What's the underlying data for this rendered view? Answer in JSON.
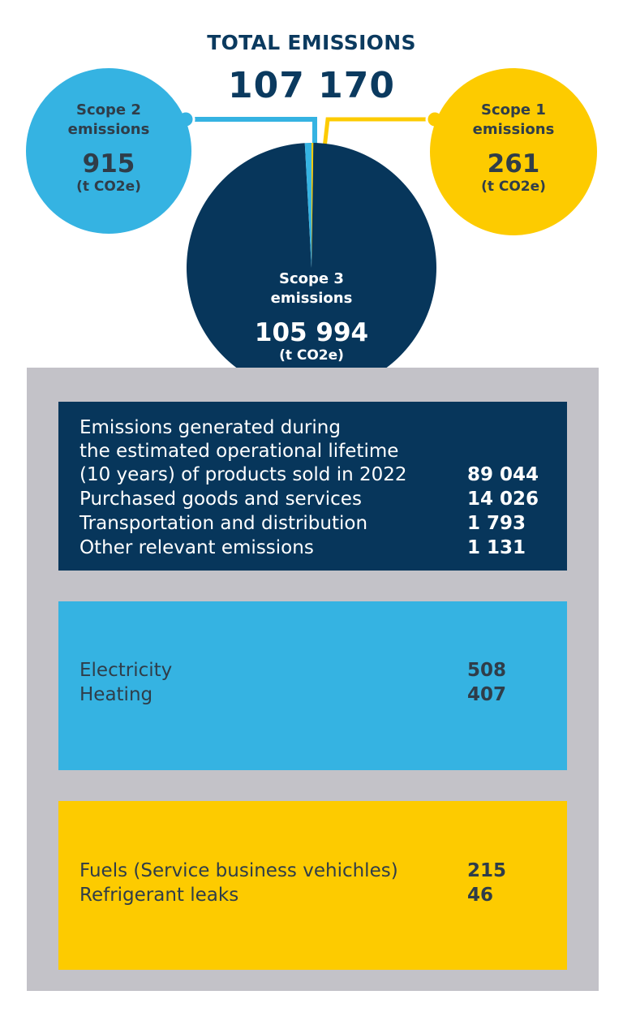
{
  "header": {
    "title": "TOTAL EMISSIONS",
    "total": "107 170"
  },
  "chart_data": {
    "type": "pie",
    "categories": [
      "Scope 1 emissions",
      "Scope 2 emissions",
      "Scope 3 emissions"
    ],
    "values": [
      261,
      915,
      105994
    ],
    "total": 107170,
    "unit": "(t CO2e)",
    "colors": {
      "scope1": "#fdcb00",
      "scope2": "#35b3e2",
      "scope3": "#07365b"
    }
  },
  "scope2": {
    "line1": "Scope 2",
    "line2": "emissions",
    "value": "915",
    "unit": "(t CO2e)"
  },
  "scope1": {
    "line1": "Scope 1",
    "line2": "emissions",
    "value": "261",
    "unit": "(t CO2e)"
  },
  "scope3": {
    "line1": "Scope 3",
    "line2": "emissions",
    "value": "105 994",
    "unit": "(t CO2e)"
  },
  "scope3_breakdown": {
    "items": [
      {
        "label_lines": [
          "Emissions generated during",
          "the estimated operational lifetime",
          "(10 years) of products sold in 2022"
        ],
        "value": "89 044"
      },
      {
        "label": "Purchased goods and services",
        "value": "14 026"
      },
      {
        "label": "Transportation and distribution",
        "value": "1 793"
      },
      {
        "label": "Other relevant emissions",
        "value": "1 131"
      }
    ]
  },
  "scope2_breakdown": {
    "items": [
      {
        "label": "Electricity",
        "value": "508"
      },
      {
        "label": "Heating",
        "value": "407"
      }
    ]
  },
  "scope1_breakdown": {
    "items": [
      {
        "label": "Fuels (Service business vehichles)",
        "value": "215"
      },
      {
        "label": "Refrigerant leaks",
        "value": "46"
      }
    ]
  }
}
